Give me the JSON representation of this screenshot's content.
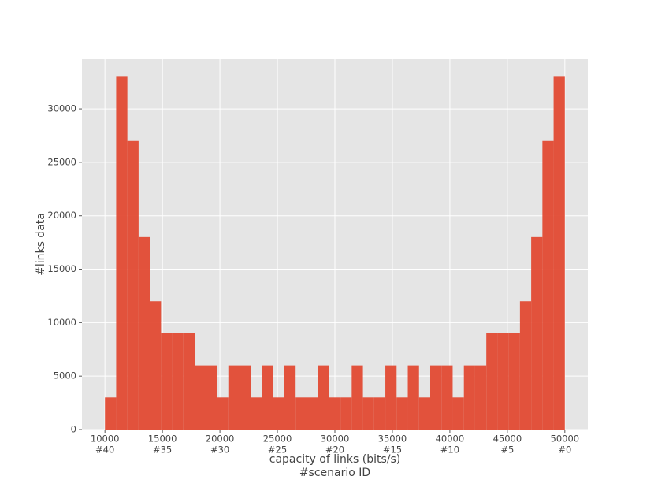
{
  "chart_data": {
    "type": "histogram",
    "xlabel": "capacity of links (bits/s)",
    "xlabel2": "#scenario ID",
    "ylabel": "#links data",
    "color": "#e24a33",
    "bins": [
      10000,
      10976,
      11951,
      12927,
      13902,
      14878,
      15854,
      16829,
      17805,
      18780,
      19756,
      20732,
      21707,
      22683,
      23659,
      24634,
      25610,
      26585,
      27561,
      28537,
      29512,
      30488,
      31463,
      32439,
      33415,
      34390,
      35366,
      36341,
      37317,
      38293,
      39268,
      40244,
      41220,
      42195,
      43171,
      44146,
      45122,
      46098,
      47073,
      48049,
      49024,
      50000
    ],
    "values": [
      3000,
      33000,
      27000,
      18000,
      12000,
      9000,
      9000,
      9000,
      6000,
      6000,
      3000,
      6000,
      6000,
      3000,
      6000,
      3000,
      6000,
      3000,
      3000,
      6000,
      3000,
      3000,
      6000,
      3000,
      3000,
      6000,
      3000,
      6000,
      3000,
      6000,
      6000,
      3000,
      6000,
      6000,
      9000,
      9000,
      9000,
      12000,
      18000,
      27000,
      33000
    ],
    "xlim": [
      8000,
      52000
    ],
    "xticks": [
      10000,
      15000,
      20000,
      25000,
      30000,
      35000,
      40000,
      45000,
      50000
    ],
    "xtick_sublabels": [
      "#40",
      "#35",
      "#30",
      "#25",
      "#20",
      "#15",
      "#10",
      "#5",
      "#0"
    ],
    "ylim": [
      0,
      34650
    ],
    "yticks": [
      0,
      5000,
      10000,
      15000,
      20000,
      25000,
      30000
    ],
    "grid": true
  }
}
